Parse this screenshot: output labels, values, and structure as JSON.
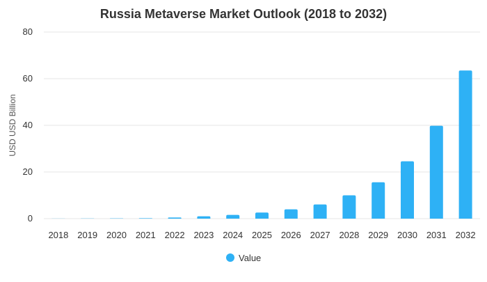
{
  "chart_data": {
    "type": "bar",
    "title": "Russia Metaverse Market Outlook (2018 to 2032)",
    "xlabel": "",
    "ylabel": "USD USD Billion",
    "categories": [
      "2018",
      "2019",
      "2020",
      "2021",
      "2022",
      "2023",
      "2024",
      "2025",
      "2026",
      "2027",
      "2028",
      "2029",
      "2030",
      "2031",
      "2032"
    ],
    "series": [
      {
        "name": "Value",
        "values": [
          0.05,
          0.08,
          0.12,
          0.2,
          0.5,
          1.0,
          1.6,
          2.6,
          4.0,
          6.1,
          10.0,
          15.6,
          24.6,
          39.8,
          63.5
        ]
      }
    ],
    "ylim": [
      0,
      80
    ],
    "yticks": [
      0,
      20,
      40,
      60,
      80
    ],
    "grid": true,
    "legend_position": "bottom",
    "bar_color": "#2eb1f5"
  }
}
